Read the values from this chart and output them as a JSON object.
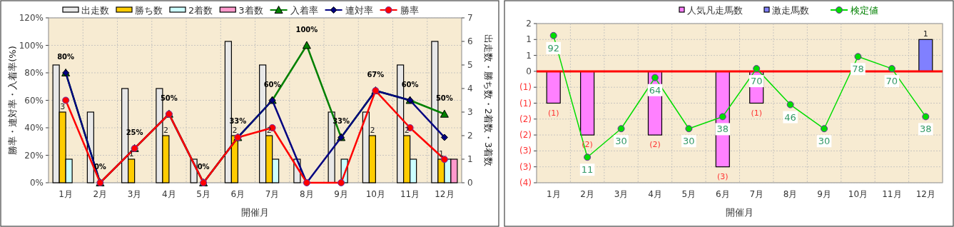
{
  "chart_data": [
    {
      "type": "bar",
      "xlabel": "開催月",
      "ylabel": "勝率・連対率・入着率(%)",
      "y2label": "出走数・勝ち数・2着数・3着数",
      "categories": [
        "1月",
        "2月",
        "3月",
        "4月",
        "5月",
        "6月",
        "7月",
        "8月",
        "9月",
        "10月",
        "11月",
        "12月"
      ],
      "ylim": [
        0,
        120
      ],
      "yticks": [
        {
          "value": 0,
          "label": "0%"
        },
        {
          "value": 20,
          "label": "20%"
        },
        {
          "value": 40,
          "label": "40%"
        },
        {
          "value": 60,
          "label": "60%"
        },
        {
          "value": 80,
          "label": "80%"
        },
        {
          "value": 100,
          "label": "100%"
        },
        {
          "value": 120,
          "label": "120%"
        }
      ],
      "y2lim": [
        0,
        7
      ],
      "y2ticks": [
        0,
        1,
        2,
        3,
        4,
        5,
        6,
        7
      ],
      "grid": true,
      "legend": "top",
      "series": [
        {
          "name": "出走数",
          "axis": "y2",
          "color": "#e8e8e8",
          "values": [
            5,
            3,
            4,
            4,
            1,
            6,
            5,
            1,
            3,
            3,
            5,
            6
          ]
        },
        {
          "name": "勝ち数",
          "axis": "y2",
          "color": "#ffcc00",
          "values": [
            3,
            0,
            1,
            2,
            0,
            2,
            2,
            0,
            0,
            2,
            2,
            1
          ],
          "value_labels": [
            "3",
            null,
            "1",
            "2",
            null,
            "2",
            "2",
            null,
            null,
            "2",
            "2",
            "1"
          ]
        },
        {
          "name": "2着数",
          "axis": "y2",
          "color": "#ccffff",
          "values": [
            1,
            0,
            0,
            0,
            0,
            0,
            1,
            0,
            1,
            0,
            1,
            1
          ]
        },
        {
          "name": "3着数",
          "axis": "y2",
          "color": "#ff99cc",
          "values": [
            0,
            0,
            0,
            0,
            0,
            0,
            0,
            0,
            0,
            0,
            0,
            1
          ]
        },
        {
          "name": "入着率",
          "type": "line",
          "marker": "triangle",
          "color": "#008000",
          "values": [
            80,
            0,
            25,
            50,
            0,
            33,
            60,
            100,
            33,
            67,
            60,
            50
          ],
          "value_labels": [
            "80%",
            "0%",
            "25%",
            "50%",
            "0%",
            "33%",
            "60%",
            "100%",
            "33%",
            "67%",
            "60%",
            "50%"
          ]
        },
        {
          "name": "連対率",
          "type": "line",
          "marker": "diamond",
          "color": "#000080",
          "values": [
            80,
            0,
            25,
            50,
            0,
            33,
            60,
            0,
            33,
            67,
            60,
            33
          ]
        },
        {
          "name": "勝率",
          "type": "line",
          "marker": "circle",
          "color": "#ff0000",
          "values": [
            60,
            0,
            25,
            50,
            0,
            33,
            40,
            0,
            0,
            67,
            40,
            17
          ]
        }
      ]
    },
    {
      "type": "bar",
      "xlabel": "開催月",
      "stacked": true,
      "categories": [
        "1月",
        "2月",
        "3月",
        "4月",
        "5月",
        "6月",
        "7月",
        "8月",
        "9月",
        "10月",
        "11月",
        "12月"
      ],
      "ylim": [
        -3.5,
        1.5
      ],
      "yticks": [
        {
          "value": 1.5,
          "label": "2"
        },
        {
          "value": 1,
          "label": "1"
        },
        {
          "value": 0.5,
          "label": "1"
        },
        {
          "value": 0,
          "label": "0"
        },
        {
          "value": -0.5,
          "label": "(1)"
        },
        {
          "value": -1,
          "label": "(1)"
        },
        {
          "value": -1.5,
          "label": "(2)"
        },
        {
          "value": -2,
          "label": "(2)"
        },
        {
          "value": -2.5,
          "label": "(3)"
        },
        {
          "value": -3,
          "label": "(3)"
        },
        {
          "value": -3.5,
          "label": "(4)"
        }
      ],
      "y2lim": [
        -6,
        100
      ],
      "grid": true,
      "legend": "top",
      "ref_lines": [
        {
          "axis": "y",
          "value": 0,
          "color": "#ff0000"
        }
      ],
      "series": [
        {
          "name": "人気凡走馬数",
          "color": "#ff80ff",
          "values": [
            -1,
            -2,
            null,
            -2,
            null,
            -3,
            -1,
            null,
            null,
            null,
            null,
            null
          ],
          "value_labels": [
            "(1)",
            "(2)",
            null,
            "(2)",
            null,
            "(3)",
            "(1)",
            null,
            null,
            null,
            null,
            null
          ]
        },
        {
          "name": "激走馬数",
          "color": "#8080ff",
          "values": [
            null,
            null,
            null,
            null,
            null,
            null,
            null,
            null,
            null,
            null,
            null,
            1
          ],
          "value_labels": [
            null,
            null,
            null,
            null,
            null,
            null,
            null,
            null,
            null,
            null,
            null,
            "1"
          ]
        },
        {
          "name": "検定値",
          "type": "line",
          "axis": "y2",
          "marker": "circle",
          "color": "#00dd00",
          "values": [
            92,
            11,
            30,
            64,
            30,
            38,
            70,
            46,
            30,
            78,
            70,
            38
          ],
          "data_labels": true
        }
      ]
    }
  ]
}
